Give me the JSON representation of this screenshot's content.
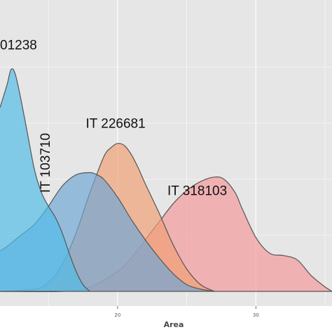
{
  "chart_data": {
    "type": "area",
    "subtype": "density",
    "title": "",
    "xlabel": "Area",
    "ylabel": "",
    "xlim": [
      11.5,
      35.5
    ],
    "ylim": [
      0,
      1.0
    ],
    "grid": true,
    "legend": "none",
    "background_color": "#e6e6e6",
    "grid_color": "#ffffff",
    "outline_color": "#555555",
    "fill_opacity": 0.68,
    "x_ticks": [
      {
        "value": 20,
        "label": "20"
      },
      {
        "value": 30,
        "label": "30"
      }
    ],
    "series": [
      {
        "name": "IT 318103",
        "color": "#f4989b",
        "x": [
          11.5,
          16,
          18,
          20,
          21,
          22,
          23,
          24,
          25,
          26,
          27,
          27.7,
          28.5,
          29,
          30,
          31,
          32,
          33,
          34,
          35,
          35.5
        ],
        "y": [
          0.0,
          0.0,
          0.02,
          0.09,
          0.15,
          0.23,
          0.31,
          0.39,
          0.45,
          0.49,
          0.51,
          0.5,
          0.44,
          0.37,
          0.24,
          0.17,
          0.16,
          0.14,
          0.07,
          0.02,
          0.0
        ]
      },
      {
        "name": "IT 226681",
        "color": "#f09f73",
        "x": [
          11.5,
          14,
          15,
          16,
          17,
          18,
          19,
          19.5,
          20,
          20.5,
          21,
          21.5,
          22,
          23,
          24,
          25,
          26,
          27
        ],
        "y": [
          0.0,
          0.01,
          0.04,
          0.12,
          0.26,
          0.44,
          0.6,
          0.64,
          0.66,
          0.65,
          0.61,
          0.55,
          0.48,
          0.35,
          0.21,
          0.1,
          0.03,
          0.0
        ]
      },
      {
        "name": "IT 103710",
        "color": "#6ea6d6",
        "x": [
          11.5,
          12,
          13,
          14,
          15,
          16,
          17,
          18,
          18.5,
          19,
          20,
          21,
          22,
          23,
          24,
          25,
          26,
          27
        ],
        "y": [
          0.18,
          0.2,
          0.25,
          0.3,
          0.38,
          0.47,
          0.52,
          0.53,
          0.52,
          0.5,
          0.42,
          0.32,
          0.23,
          0.15,
          0.08,
          0.03,
          0.01,
          0.0
        ]
      },
      {
        "name": "01238",
        "color": "#4fbde8",
        "x": [
          11.5,
          12,
          12.3,
          12.6,
          13,
          13.5,
          14,
          14.5,
          15,
          15.5,
          16,
          16.5,
          17,
          17.5,
          18
        ],
        "y": [
          0.82,
          0.92,
          0.99,
          0.97,
          0.86,
          0.7,
          0.54,
          0.44,
          0.38,
          0.33,
          0.26,
          0.17,
          0.09,
          0.03,
          0.0
        ]
      }
    ],
    "annotations": [
      {
        "text": "01238",
        "x": 11.5,
        "y": 1.08,
        "rotate": 0
      },
      {
        "text": "IT 103710",
        "x": 15.1,
        "y": 0.44,
        "rotate": -90
      },
      {
        "text": "IT 226681",
        "x": 17.7,
        "y": 0.73,
        "rotate": 0
      },
      {
        "text": "IT 318103",
        "x": 23.6,
        "y": 0.43,
        "rotate": 0
      }
    ]
  }
}
